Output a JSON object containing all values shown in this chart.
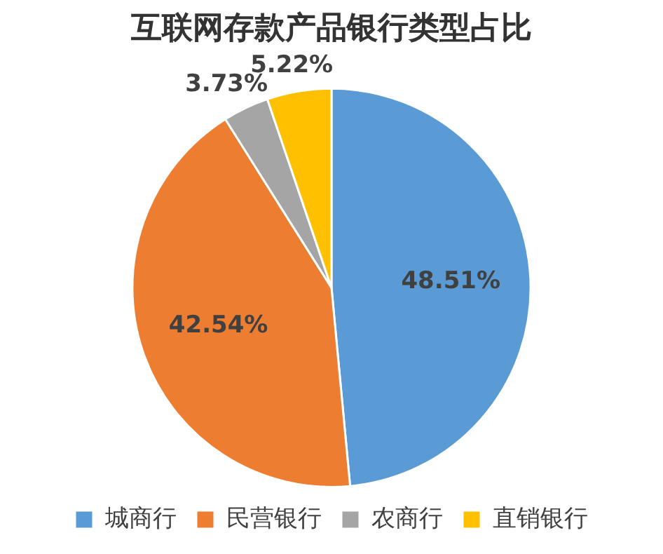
{
  "chart_data": {
    "type": "pie",
    "title": "互联网存款产品银行类型占比",
    "categories": [
      "城商行",
      "民营银行",
      "农商行",
      "直销银行"
    ],
    "values": [
      48.51,
      42.54,
      3.73,
      5.22
    ],
    "colors": [
      "#5b9bd5",
      "#ed7d31",
      "#a5a5a5",
      "#ffc000"
    ],
    "value_labels": [
      "48.51%",
      "42.54%",
      "3.73%",
      "5.22%"
    ],
    "legend": "bottom"
  }
}
